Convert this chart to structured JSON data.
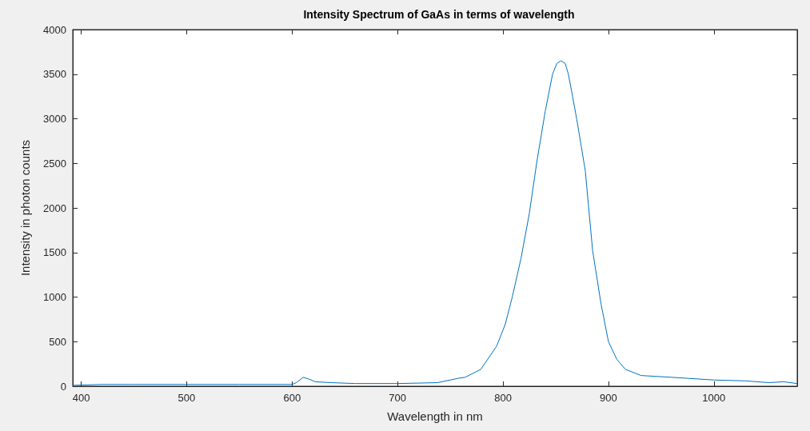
{
  "chart_data": {
    "type": "line",
    "title": "Intensity Spectrum of GaAs in terms of wavelength",
    "xlabel": "Wavelength in nm",
    "ylabel": "Intensity in photon counts",
    "x": [
      392,
      420,
      450,
      500,
      550,
      600,
      604,
      610.6,
      616,
      622,
      637,
      660,
      700,
      738,
      758,
      764,
      779,
      794,
      802,
      809,
      817,
      825,
      832,
      840,
      847,
      851,
      855,
      859,
      862,
      866,
      870,
      878,
      885,
      893,
      900,
      908,
      916,
      931,
      960,
      1000,
      1030,
      1052,
      1066,
      1079
    ],
    "series": [
      {
        "color": "#0072bd",
        "values": [
          10,
          20,
          20,
          20,
          20,
          20,
          40,
          100,
          80,
          50,
          40,
          30,
          30,
          40,
          90,
          100,
          190,
          450,
          690,
          1010,
          1430,
          1940,
          2510,
          3080,
          3500,
          3620,
          3650,
          3620,
          3500,
          3250,
          2990,
          2420,
          1520,
          920,
          500,
          300,
          190,
          120,
          100,
          70,
          60,
          40,
          50,
          30
        ]
      }
    ],
    "xlim": [
      392,
      1079
    ],
    "ylim": [
      0,
      4000
    ],
    "xticks": [
      400,
      500,
      600,
      700,
      800,
      900,
      1000
    ],
    "yticks": [
      0,
      500,
      1000,
      1500,
      2000,
      2500,
      3000,
      3500,
      4000
    ],
    "grid": false,
    "marker": "none",
    "line_style": "solid"
  }
}
